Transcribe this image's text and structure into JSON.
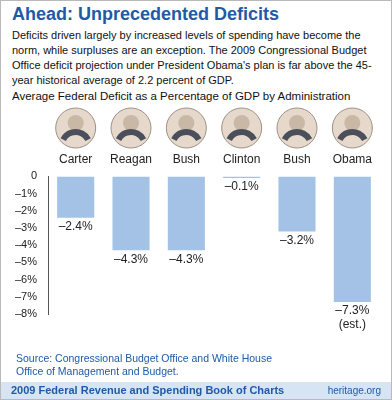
{
  "chart_data": {
    "type": "bar",
    "title": "Ahead: Unprecedented Deficits",
    "subtitle": "Deficits driven largely by increased levels of spending have become the norm, while surpluses are an exception. The 2009 Congressional Budget Office deficit projection under President Obama's plan is far above the 45-year historical average of 2.2 percent of GDP.",
    "ylabel": "Average Federal Deficit as a Percentage of GDP by Administration",
    "categories": [
      "Carter",
      "Reagan",
      "Bush",
      "Clinton",
      "Bush",
      "Obama"
    ],
    "values": [
      -2.4,
      -4.3,
      -4.3,
      -0.1,
      -3.2,
      -7.3
    ],
    "value_labels": [
      "–2.4%",
      "–4.3%",
      "–4.3%",
      "–0.1%",
      "–3.2%",
      "–7.3%\n(est.)"
    ],
    "color": "#a3c2e6",
    "ylim": [
      -8,
      0
    ],
    "yticks": [
      {
        "value": -8,
        "label": "–8%"
      },
      {
        "value": -7,
        "label": "–7%"
      },
      {
        "value": -6,
        "label": "–6%"
      },
      {
        "value": -5,
        "label": "–5%"
      },
      {
        "value": -4,
        "label": "–4%"
      },
      {
        "value": -3,
        "label": "–3%"
      },
      {
        "value": -2,
        "label": "–2%"
      },
      {
        "value": -1,
        "label": "–1%"
      },
      0
    ],
    "grid": false,
    "data_labels": true,
    "source": "Source: Congressional Budget Office and White House Office of Management and Budget.",
    "footer": "2009 Federal Revenue and Spending Book of Charts",
    "credit": "heritage.org"
  }
}
